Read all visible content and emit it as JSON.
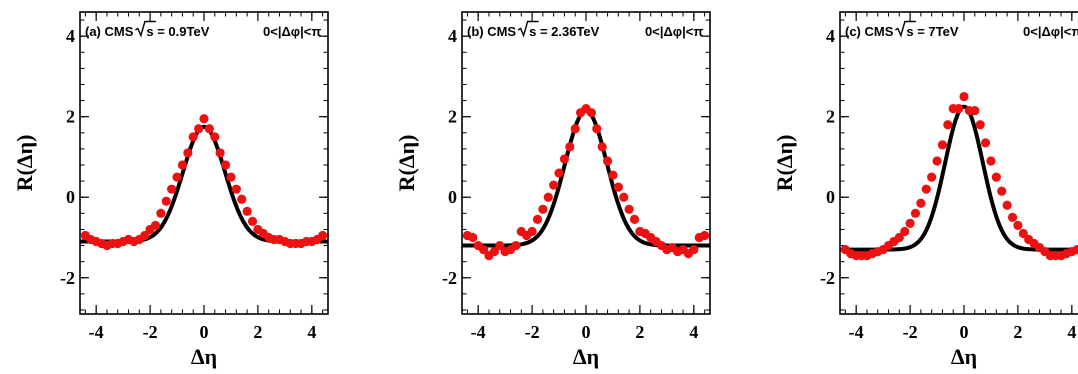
{
  "colors": {
    "points": "#ee1111",
    "curve": "#000000",
    "frame": "#000000"
  },
  "chart_data": [
    {
      "type": "scatter",
      "panel_label": "(a) CMS",
      "energy_text": "s = 0.9TeV",
      "phi_range": "0<|Δφ|<π",
      "xlabel": "Δη",
      "ylabel": "R(Δη)",
      "xlim": [
        -4.6,
        4.6
      ],
      "ylim": [
        -2.9,
        4.6
      ],
      "xticks": [
        -4,
        -2,
        0,
        2,
        4
      ],
      "yticks": [
        -2,
        0,
        2,
        4
      ],
      "series": [
        {
          "type": "scatter",
          "x": [
            -4.4,
            -4.2,
            -4.0,
            -3.8,
            -3.6,
            -3.4,
            -3.2,
            -3.0,
            -2.8,
            -2.6,
            -2.4,
            -2.2,
            -2.0,
            -1.8,
            -1.6,
            -1.4,
            -1.2,
            -1.0,
            -0.8,
            -0.6,
            -0.4,
            -0.2,
            0.0,
            0.2,
            0.4,
            0.6,
            0.8,
            1.0,
            1.2,
            1.4,
            1.6,
            1.8,
            2.0,
            2.2,
            2.4,
            2.6,
            2.8,
            3.0,
            3.2,
            3.4,
            3.6,
            3.8,
            4.0,
            4.2,
            4.4
          ],
          "y": [
            -0.95,
            -1.05,
            -1.1,
            -1.15,
            -1.2,
            -1.15,
            -1.15,
            -1.1,
            -1.05,
            -1.1,
            -1.05,
            -0.95,
            -0.8,
            -0.7,
            -0.4,
            -0.1,
            0.2,
            0.5,
            0.8,
            1.1,
            1.5,
            1.7,
            1.95,
            1.7,
            1.5,
            1.1,
            0.8,
            0.5,
            0.2,
            -0.05,
            -0.35,
            -0.6,
            -0.8,
            -0.9,
            -1.0,
            -1.05,
            -1.05,
            -1.1,
            -1.15,
            -1.15,
            -1.15,
            -1.1,
            -1.1,
            -1.05,
            -0.95
          ]
        },
        {
          "type": "line",
          "curve": {
            "offset": -1.1,
            "amp": 2.85,
            "sigma": 0.78
          }
        }
      ]
    },
    {
      "type": "scatter",
      "panel_label": "(b) CMS",
      "energy_text": "s = 2.36TeV",
      "phi_range": "0<|Δφ|<π",
      "xlabel": "Δη",
      "ylabel": "R(Δη)",
      "xlim": [
        -4.6,
        4.6
      ],
      "ylim": [
        -2.9,
        4.6
      ],
      "xticks": [
        -4,
        -2,
        0,
        2,
        4
      ],
      "yticks": [
        -2,
        0,
        2,
        4
      ],
      "series": [
        {
          "type": "scatter",
          "x": [
            -4.4,
            -4.2,
            -4.0,
            -3.8,
            -3.6,
            -3.4,
            -3.2,
            -3.0,
            -2.8,
            -2.6,
            -2.4,
            -2.2,
            -2.0,
            -1.8,
            -1.6,
            -1.4,
            -1.2,
            -1.0,
            -0.8,
            -0.6,
            -0.4,
            -0.2,
            0.0,
            0.2,
            0.4,
            0.6,
            0.8,
            1.0,
            1.2,
            1.4,
            1.6,
            1.8,
            2.0,
            2.2,
            2.4,
            2.6,
            2.8,
            3.0,
            3.2,
            3.4,
            3.6,
            3.8,
            4.0,
            4.2,
            4.4
          ],
          "y": [
            -0.95,
            -1.0,
            -1.2,
            -1.3,
            -1.45,
            -1.35,
            -1.2,
            -1.35,
            -1.3,
            -1.2,
            -0.85,
            -0.95,
            -0.85,
            -0.55,
            -0.3,
            0.0,
            0.3,
            0.6,
            0.95,
            1.25,
            1.7,
            2.1,
            2.2,
            2.1,
            1.7,
            1.25,
            0.9,
            0.55,
            0.25,
            0.0,
            -0.3,
            -0.55,
            -0.85,
            -0.9,
            -1.0,
            -1.1,
            -1.2,
            -1.3,
            -1.25,
            -1.35,
            -1.3,
            -1.4,
            -1.3,
            -1.0,
            -0.95
          ]
        },
        {
          "type": "line",
          "curve": {
            "offset": -1.2,
            "amp": 3.35,
            "sigma": 0.78
          }
        }
      ]
    },
    {
      "type": "scatter",
      "panel_label": "(c) CMS",
      "energy_text": "s = 7TeV",
      "phi_range": "0<|Δφ|<π",
      "xlabel": "Δη",
      "ylabel": "R(Δη)",
      "xlim": [
        -4.6,
        4.6
      ],
      "ylim": [
        -2.9,
        4.6
      ],
      "xticks": [
        -4,
        -2,
        0,
        2,
        4
      ],
      "yticks": [
        -2,
        0,
        2,
        4
      ],
      "series": [
        {
          "type": "scatter",
          "x": [
            -4.4,
            -4.2,
            -4.0,
            -3.8,
            -3.6,
            -3.4,
            -3.2,
            -3.0,
            -2.8,
            -2.6,
            -2.4,
            -2.2,
            -2.0,
            -1.8,
            -1.6,
            -1.4,
            -1.2,
            -1.0,
            -0.8,
            -0.6,
            -0.4,
            -0.2,
            0.0,
            0.2,
            0.4,
            0.6,
            0.8,
            1.0,
            1.2,
            1.4,
            1.6,
            1.8,
            2.0,
            2.2,
            2.4,
            2.6,
            2.8,
            3.0,
            3.2,
            3.4,
            3.6,
            3.8,
            4.0,
            4.2,
            4.4
          ],
          "y": [
            -1.3,
            -1.4,
            -1.45,
            -1.45,
            -1.45,
            -1.4,
            -1.35,
            -1.3,
            -1.2,
            -1.1,
            -1.0,
            -0.85,
            -0.65,
            -0.4,
            -0.15,
            0.2,
            0.5,
            0.9,
            1.3,
            1.8,
            2.2,
            2.2,
            2.5,
            2.15,
            2.15,
            1.8,
            1.35,
            0.9,
            0.5,
            0.15,
            -0.2,
            -0.5,
            -0.7,
            -0.9,
            -1.05,
            -1.15,
            -1.25,
            -1.35,
            -1.45,
            -1.45,
            -1.45,
            -1.4,
            -1.35,
            -1.3,
            -1.3
          ]
        },
        {
          "type": "line",
          "curve": {
            "offset": -1.3,
            "amp": 3.55,
            "sigma": 0.7
          }
        }
      ]
    }
  ]
}
